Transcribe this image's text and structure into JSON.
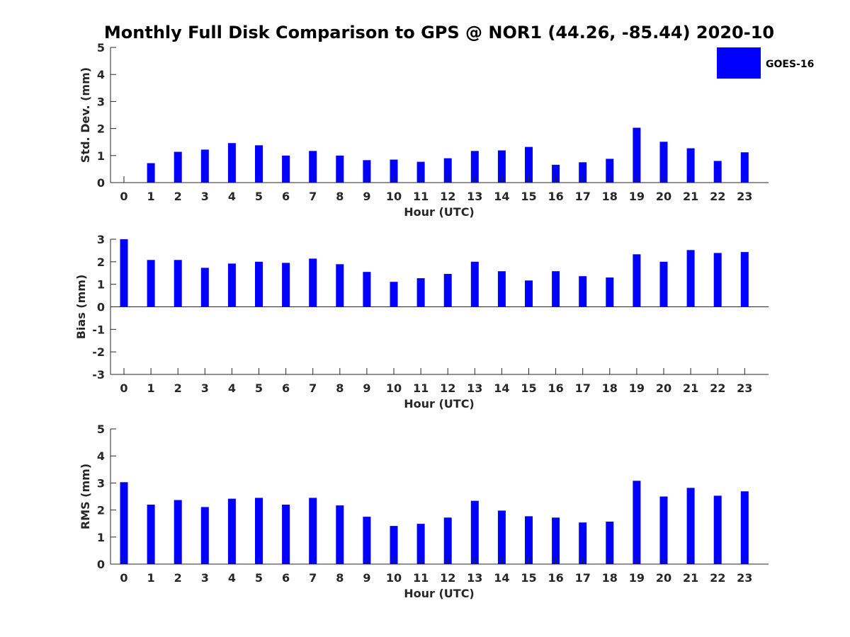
{
  "colors": {
    "series": "#0000ff",
    "axis": "#262626"
  },
  "legend": {
    "label": "GOES-16",
    "placement": "top-right"
  },
  "title": "Monthly Full Disk Comparison to GPS @ NOR1 (44.26, -85.44) 2020-10",
  "chart_data": [
    {
      "type": "bar",
      "series_name": "GOES-16",
      "xlabel": "Hour (UTC)",
      "ylabel": "Std. Dev. (mm)",
      "ylim": [
        0,
        5
      ],
      "yticks": [
        0,
        1,
        2,
        3,
        4,
        5
      ],
      "categories": [
        "0",
        "1",
        "2",
        "3",
        "4",
        "5",
        "6",
        "7",
        "8",
        "9",
        "10",
        "11",
        "12",
        "13",
        "14",
        "15",
        "16",
        "17",
        "18",
        "19",
        "20",
        "21",
        "22",
        "23"
      ],
      "values": [
        0,
        0.72,
        1.14,
        1.22,
        1.46,
        1.38,
        1.0,
        1.17,
        1.0,
        0.83,
        0.85,
        0.77,
        0.9,
        1.17,
        1.19,
        1.32,
        0.66,
        0.75,
        0.88,
        2.03,
        1.51,
        1.27,
        0.8,
        1.12
      ]
    },
    {
      "type": "bar",
      "series_name": "GOES-16",
      "xlabel": "Hour (UTC)",
      "ylabel": "Bias (mm)",
      "ylim": [
        -3,
        3
      ],
      "yticks": [
        -3,
        -2,
        -1,
        0,
        1,
        2,
        3
      ],
      "categories": [
        "0",
        "1",
        "2",
        "3",
        "4",
        "5",
        "6",
        "7",
        "8",
        "9",
        "10",
        "11",
        "12",
        "13",
        "14",
        "15",
        "16",
        "17",
        "18",
        "19",
        "20",
        "21",
        "22",
        "23"
      ],
      "values": [
        3.0,
        2.08,
        2.08,
        1.73,
        1.92,
        2.0,
        1.95,
        2.14,
        1.89,
        1.55,
        1.11,
        1.27,
        1.46,
        2.0,
        1.58,
        1.17,
        1.58,
        1.36,
        1.3,
        2.33,
        2.0,
        2.52,
        2.39,
        2.43
      ]
    },
    {
      "type": "bar",
      "series_name": "GOES-16",
      "xlabel": "Hour (UTC)",
      "ylabel": "RMS (mm)",
      "ylim": [
        0,
        5
      ],
      "yticks": [
        0,
        1,
        2,
        3,
        4,
        5
      ],
      "categories": [
        "0",
        "1",
        "2",
        "3",
        "4",
        "5",
        "6",
        "7",
        "8",
        "9",
        "10",
        "11",
        "12",
        "13",
        "14",
        "15",
        "16",
        "17",
        "18",
        "19",
        "20",
        "21",
        "22",
        "23"
      ],
      "values": [
        3.03,
        2.2,
        2.37,
        2.11,
        2.42,
        2.45,
        2.2,
        2.45,
        2.17,
        1.75,
        1.41,
        1.49,
        1.72,
        2.34,
        1.98,
        1.77,
        1.72,
        1.54,
        1.57,
        3.08,
        2.5,
        2.82,
        2.53,
        2.69
      ]
    }
  ]
}
